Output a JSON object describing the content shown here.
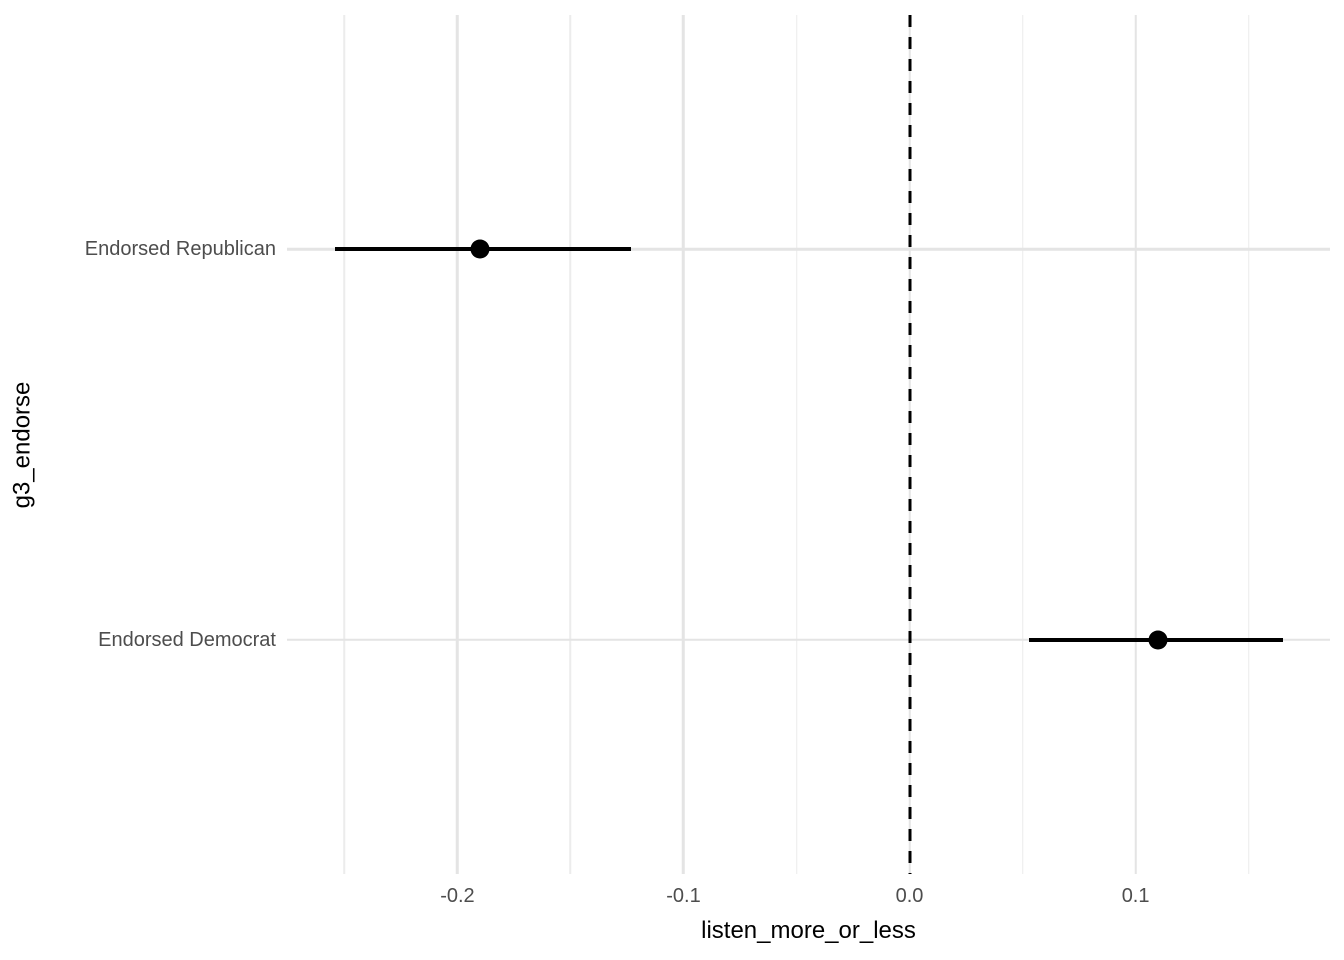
{
  "chart_data": {
    "type": "scatter",
    "mark": "pointrange",
    "title": "",
    "xlabel": "listen_more_or_less",
    "ylabel": "g3_endorse",
    "xlim": [
      -0.2754,
      0.186
    ],
    "x_major_ticks": [
      -0.2,
      -0.1,
      0,
      0.1
    ],
    "x_major_tick_labels": [
      "-0.2",
      "-0.1",
      "0.0",
      "0.1"
    ],
    "x_minor_ticks": [
      -0.25,
      -0.15,
      -0.05,
      0.05,
      0.15
    ],
    "categories": [
      "Endorsed Republican",
      "Endorsed Democrat"
    ],
    "series": [
      {
        "name": "estimates",
        "points": [
          {
            "category": "Endorsed Republican",
            "estimate": -0.19,
            "ci_low": -0.254,
            "ci_high": -0.123
          },
          {
            "category": "Endorsed Democrat",
            "estimate": 0.11,
            "ci_low": 0.053,
            "ci_high": 0.165
          }
        ]
      }
    ],
    "reference_line": {
      "x": 0,
      "style": "dashed"
    },
    "grid": "on",
    "legend_position": "none",
    "colors": {
      "point": "#000000",
      "ci_line": "#000000",
      "reference_line": "#000000",
      "grid_major": "#E4E4E4",
      "grid_minor": "#ECECEC",
      "tick_label": "#4D4D4D",
      "axis_title": "#000000",
      "background": "#FFFFFF"
    }
  }
}
